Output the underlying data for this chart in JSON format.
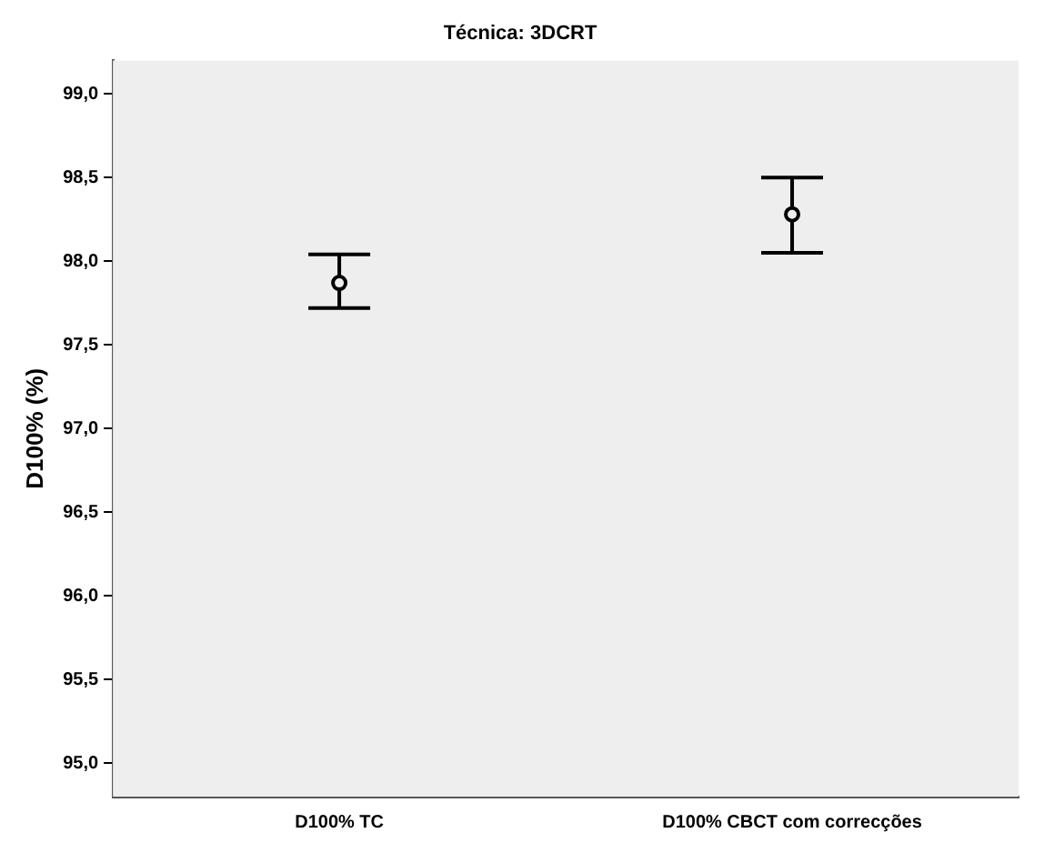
{
  "chart_data": {
    "type": "scatter",
    "title": "Técnica: 3DCRT",
    "ylabel": "D100% (%)",
    "categories": [
      "D100% TC",
      "D100% CBCT com correcções"
    ],
    "values": [
      97.87,
      98.28
    ],
    "errors": [
      [
        97.72,
        98.04
      ],
      [
        98.05,
        98.5
      ]
    ],
    "color": "#000000",
    "marker": "circle",
    "ylim": [
      94.8,
      99.2
    ],
    "yticks": [
      {
        "value": 95,
        "label": "95,0"
      },
      {
        "value": 95.5,
        "label": "95,5"
      },
      {
        "value": 96,
        "label": "96,0"
      },
      {
        "value": 96.5,
        "label": "96,5"
      },
      {
        "value": 97,
        "label": "97,0"
      },
      {
        "value": 97.5,
        "label": "97,5"
      },
      {
        "value": 98,
        "label": "98,0"
      },
      {
        "value": 98.5,
        "label": "98,5"
      },
      {
        "value": 99,
        "label": "99,0"
      }
    ],
    "grid": false,
    "legend": false
  }
}
